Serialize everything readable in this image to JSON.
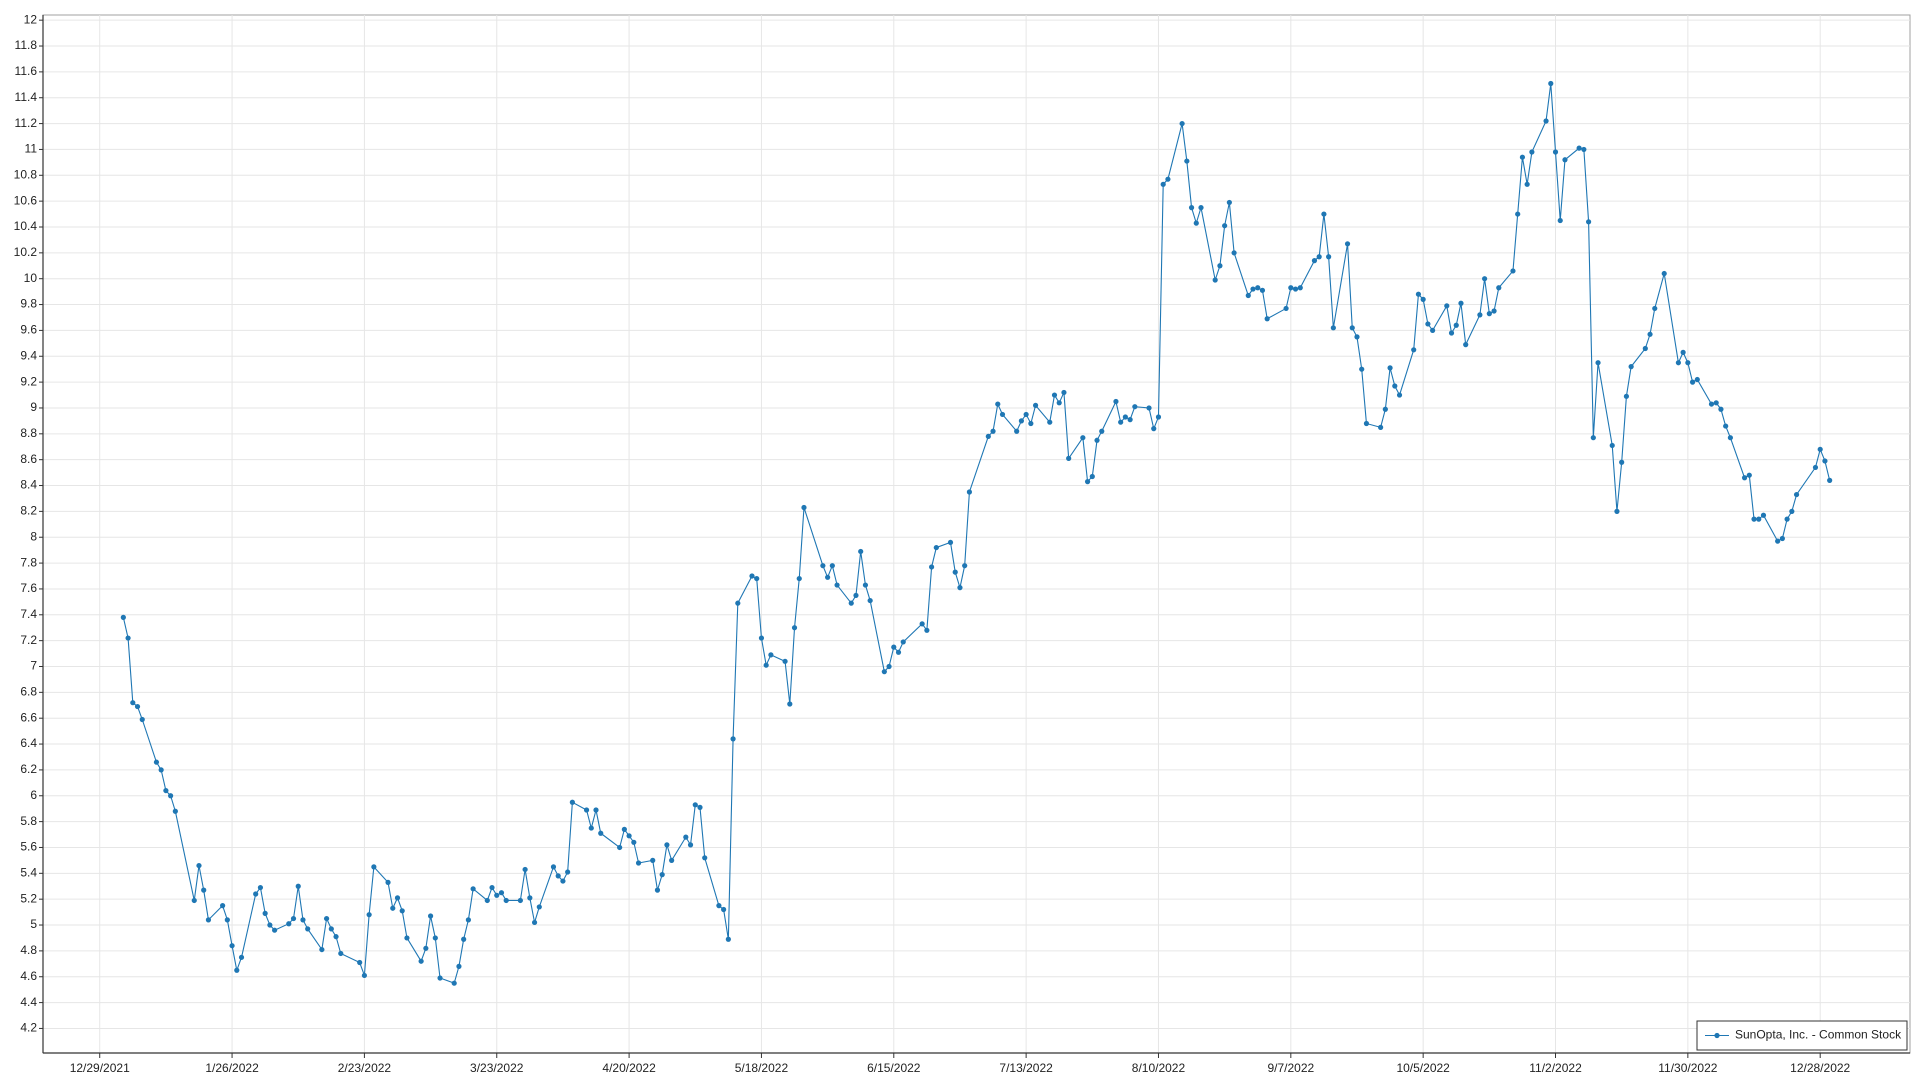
{
  "chart_data": {
    "type": "line",
    "x": [
      "1/3/2022",
      "1/4/2022",
      "1/5/2022",
      "1/6/2022",
      "1/7/2022",
      "1/10/2022",
      "1/11/2022",
      "1/12/2022",
      "1/13/2022",
      "1/14/2022",
      "1/18/2022",
      "1/19/2022",
      "1/20/2022",
      "1/21/2022",
      "1/24/2022",
      "1/25/2022",
      "1/26/2022",
      "1/27/2022",
      "1/28/2022",
      "1/31/2022",
      "2/1/2022",
      "2/2/2022",
      "2/3/2022",
      "2/4/2022",
      "2/7/2022",
      "2/8/2022",
      "2/9/2022",
      "2/10/2022",
      "2/11/2022",
      "2/14/2022",
      "2/15/2022",
      "2/16/2022",
      "2/17/2022",
      "2/18/2022",
      "2/22/2022",
      "2/23/2022",
      "2/24/2022",
      "2/25/2022",
      "2/28/2022",
      "3/1/2022",
      "3/2/2022",
      "3/3/2022",
      "3/4/2022",
      "3/7/2022",
      "3/8/2022",
      "3/9/2022",
      "3/10/2022",
      "3/11/2022",
      "3/14/2022",
      "3/15/2022",
      "3/16/2022",
      "3/17/2022",
      "3/18/2022",
      "3/21/2022",
      "3/22/2022",
      "3/23/2022",
      "3/24/2022",
      "3/25/2022",
      "3/28/2022",
      "3/29/2022",
      "3/30/2022",
      "3/31/2022",
      "4/1/2022",
      "4/4/2022",
      "4/5/2022",
      "4/6/2022",
      "4/7/2022",
      "4/8/2022",
      "4/11/2022",
      "4/12/2022",
      "4/13/2022",
      "4/14/2022",
      "4/18/2022",
      "4/19/2022",
      "4/20/2022",
      "4/21/2022",
      "4/22/2022",
      "4/25/2022",
      "4/26/2022",
      "4/27/2022",
      "4/28/2022",
      "4/29/2022",
      "5/2/2022",
      "5/3/2022",
      "5/4/2022",
      "5/5/2022",
      "5/6/2022",
      "5/9/2022",
      "5/10/2022",
      "5/11/2022",
      "5/12/2022",
      "5/13/2022",
      "5/16/2022",
      "5/17/2022",
      "5/18/2022",
      "5/19/2022",
      "5/20/2022",
      "5/23/2022",
      "5/24/2022",
      "5/25/2022",
      "5/26/2022",
      "5/27/2022",
      "5/31/2022",
      "6/1/2022",
      "6/2/2022",
      "6/3/2022",
      "6/6/2022",
      "6/7/2022",
      "6/8/2022",
      "6/9/2022",
      "6/10/2022",
      "6/13/2022",
      "6/14/2022",
      "6/15/2022",
      "6/16/2022",
      "6/17/2022",
      "6/21/2022",
      "6/22/2022",
      "6/23/2022",
      "6/24/2022",
      "6/27/2022",
      "6/28/2022",
      "6/29/2022",
      "6/30/2022",
      "7/1/2022",
      "7/5/2022",
      "7/6/2022",
      "7/7/2022",
      "7/8/2022",
      "7/11/2022",
      "7/12/2022",
      "7/13/2022",
      "7/14/2022",
      "7/15/2022",
      "7/18/2022",
      "7/19/2022",
      "7/20/2022",
      "7/21/2022",
      "7/22/2022",
      "7/25/2022",
      "7/26/2022",
      "7/27/2022",
      "7/28/2022",
      "7/29/2022",
      "8/1/2022",
      "8/2/2022",
      "8/3/2022",
      "8/4/2022",
      "8/5/2022",
      "8/8/2022",
      "8/9/2022",
      "8/10/2022",
      "8/11/2022",
      "8/12/2022",
      "8/15/2022",
      "8/16/2022",
      "8/17/2022",
      "8/18/2022",
      "8/19/2022",
      "8/22/2022",
      "8/23/2022",
      "8/24/2022",
      "8/25/2022",
      "8/26/2022",
      "8/29/2022",
      "8/30/2022",
      "8/31/2022",
      "9/1/2022",
      "9/2/2022",
      "9/6/2022",
      "9/7/2022",
      "9/8/2022",
      "9/9/2022",
      "9/12/2022",
      "9/13/2022",
      "9/14/2022",
      "9/15/2022",
      "9/16/2022",
      "9/19/2022",
      "9/20/2022",
      "9/21/2022",
      "9/22/2022",
      "9/23/2022",
      "9/26/2022",
      "9/27/2022",
      "9/28/2022",
      "9/29/2022",
      "9/30/2022",
      "10/3/2022",
      "10/4/2022",
      "10/5/2022",
      "10/6/2022",
      "10/7/2022",
      "10/10/2022",
      "10/11/2022",
      "10/12/2022",
      "10/13/2022",
      "10/14/2022",
      "10/17/2022",
      "10/18/2022",
      "10/19/2022",
      "10/20/2022",
      "10/21/2022",
      "10/24/2022",
      "10/25/2022",
      "10/26/2022",
      "10/27/2022",
      "10/28/2022",
      "10/31/2022",
      "11/1/2022",
      "11/2/2022",
      "11/3/2022",
      "11/4/2022",
      "11/7/2022",
      "11/8/2022",
      "11/9/2022",
      "11/10/2022",
      "11/11/2022",
      "11/14/2022",
      "11/15/2022",
      "11/16/2022",
      "11/17/2022",
      "11/18/2022",
      "11/21/2022",
      "11/22/2022",
      "11/23/2022",
      "11/25/2022",
      "11/28/2022",
      "11/29/2022",
      "11/30/2022",
      "12/1/2022",
      "12/2/2022",
      "12/5/2022",
      "12/6/2022",
      "12/7/2022",
      "12/8/2022",
      "12/9/2022",
      "12/12/2022",
      "12/13/2022",
      "12/14/2022",
      "12/15/2022",
      "12/16/2022",
      "12/19/2022",
      "12/20/2022",
      "12/21/2022",
      "12/22/2022",
      "12/23/2022",
      "12/27/2022",
      "12/28/2022",
      "12/29/2022",
      "12/30/2022"
    ],
    "series": [
      {
        "name": "SunOpta, Inc. - Common Stock",
        "color": "#1f77b4",
        "values": [
          7.38,
          7.22,
          6.72,
          6.69,
          6.59,
          6.26,
          6.2,
          6.04,
          6.0,
          5.88,
          5.19,
          5.46,
          5.27,
          5.04,
          5.15,
          5.04,
          4.84,
          4.65,
          4.75,
          5.24,
          5.29,
          5.09,
          5.0,
          4.96,
          5.01,
          5.05,
          5.3,
          5.04,
          4.97,
          4.81,
          5.05,
          4.97,
          4.91,
          4.78,
          4.71,
          4.61,
          5.08,
          5.45,
          5.33,
          5.13,
          5.21,
          5.11,
          4.9,
          4.72,
          4.82,
          5.07,
          4.9,
          4.59,
          4.55,
          4.68,
          4.89,
          5.04,
          5.28,
          5.19,
          5.29,
          5.23,
          5.25,
          5.19,
          5.19,
          5.43,
          5.21,
          5.02,
          5.14,
          5.45,
          5.38,
          5.34,
          5.41,
          5.95,
          5.89,
          5.75,
          5.89,
          5.71,
          5.6,
          5.74,
          5.69,
          5.64,
          5.48,
          5.5,
          5.27,
          5.39,
          5.62,
          5.5,
          5.68,
          5.62,
          5.93,
          5.91,
          5.52,
          5.15,
          5.12,
          4.89,
          6.44,
          7.49,
          7.7,
          7.68,
          7.22,
          7.01,
          7.09,
          7.04,
          6.71,
          7.3,
          7.68,
          8.23,
          7.78,
          7.69,
          7.78,
          7.63,
          7.49,
          7.55,
          7.89,
          7.63,
          7.51,
          6.96,
          7.0,
          7.15,
          7.11,
          7.19,
          7.33,
          7.28,
          7.77,
          7.92,
          7.96,
          7.73,
          7.61,
          7.78,
          8.35,
          8.78,
          8.82,
          9.03,
          8.95,
          8.82,
          8.9,
          8.95,
          8.88,
          9.02,
          8.89,
          9.1,
          9.04,
          9.12,
          8.61,
          8.77,
          8.43,
          8.47,
          8.75,
          8.82,
          9.05,
          8.89,
          8.93,
          8.91,
          9.01,
          9.0,
          8.84,
          8.93,
          10.73,
          10.77,
          11.2,
          10.91,
          10.55,
          10.43,
          10.55,
          9.99,
          10.1,
          10.41,
          10.59,
          10.2,
          9.87,
          9.92,
          9.93,
          9.91,
          9.69,
          9.77,
          9.93,
          9.92,
          9.93,
          10.14,
          10.17,
          10.5,
          10.17,
          9.62,
          10.27,
          9.62,
          9.55,
          9.3,
          8.88,
          8.85,
          8.99,
          9.31,
          9.17,
          9.1,
          9.45,
          9.88,
          9.84,
          9.65,
          9.6,
          9.79,
          9.58,
          9.64,
          9.81,
          9.49,
          9.72,
          10.0,
          9.73,
          9.75,
          9.93,
          10.06,
          10.5,
          10.94,
          10.73,
          10.98,
          11.22,
          11.51,
          10.98,
          10.45,
          10.92,
          11.01,
          11.0,
          10.44,
          8.77,
          9.35,
          8.71,
          8.2,
          8.58,
          9.09,
          9.32,
          9.46,
          9.57,
          9.77,
          10.04,
          9.35,
          9.43,
          9.35,
          9.2,
          9.22,
          9.03,
          9.04,
          8.99,
          8.86,
          8.77,
          8.46,
          8.48,
          8.14,
          8.14,
          8.17,
          7.97,
          7.99,
          8.14,
          8.2,
          8.33,
          8.54,
          8.68,
          8.59,
          8.44
        ]
      }
    ],
    "xlim": [
      "12/17/2021",
      "1/16/2023"
    ],
    "xticks": [
      "12/29/2021",
      "1/26/2022",
      "2/23/2022",
      "3/23/2022",
      "4/20/2022",
      "5/18/2022",
      "6/15/2022",
      "7/13/2022",
      "8/10/2022",
      "9/7/2022",
      "10/5/2022",
      "11/2/2022",
      "11/30/2022",
      "12/28/2022"
    ],
    "ylim": [
      4.01,
      12.04
    ],
    "yticks": [
      4.2,
      4.4,
      4.6,
      4.8,
      5,
      5.2,
      5.4,
      5.6,
      5.8,
      6,
      6.2,
      6.4,
      6.6,
      6.8,
      7,
      7.2,
      7.4,
      7.6,
      7.8,
      8,
      8.2,
      8.4,
      8.6,
      8.8,
      9,
      9.2,
      9.4,
      9.6,
      9.8,
      10,
      10.2,
      10.4,
      10.6,
      10.8,
      11,
      11.2,
      11.4,
      11.6,
      11.8,
      12
    ],
    "grid": true,
    "markers": true,
    "legend": "lower right"
  }
}
